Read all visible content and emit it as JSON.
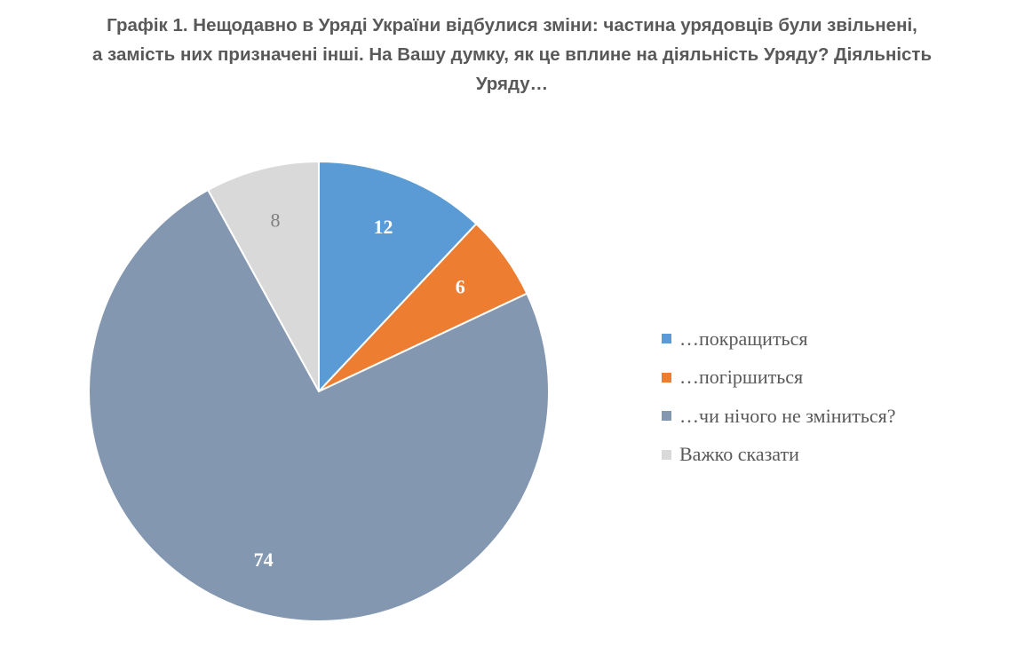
{
  "chart_data": {
    "type": "pie",
    "title_lines": [
      "Графік 1. Нещодавно в Уряді України відбулися зміни: частина урядовців були звільнені,",
      "а замість них призначені інші. На Вашу думку, як це вплине на діяльність Уряду? Діяльність",
      "Уряду…"
    ],
    "slices": [
      {
        "label": "…покращиться",
        "value": 12,
        "color": "#5b9bd5",
        "label_color": "#ffffff"
      },
      {
        "label": "…погіршиться",
        "value": 6,
        "color": "#ed7d31",
        "label_color": "#ffffff"
      },
      {
        "label": "…чи нічого не зміниться?",
        "value": 74,
        "color": "#8497b0",
        "label_color": "#ffffff"
      },
      {
        "label": "Важко сказати",
        "value": 8,
        "color": "#d9d9d9",
        "label_color": "#7f7f7f"
      }
    ],
    "legend_position": "right"
  }
}
